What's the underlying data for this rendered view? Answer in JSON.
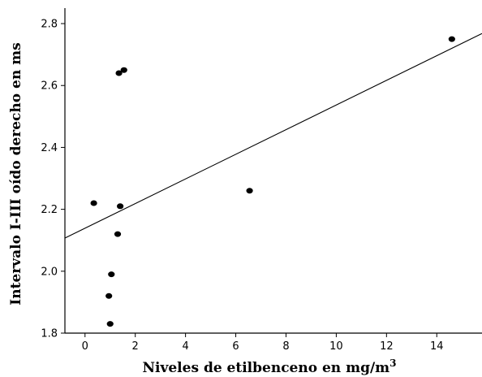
{
  "chart_data": {
    "type": "scatter",
    "title": "",
    "xlabel": "Niveles de etilbenceno en mg/m",
    "xlabel_superscript": "3",
    "ylabel": "Intervalo I-III oído derecho en ms",
    "xlim": [
      -0.8,
      15.8
    ],
    "ylim": [
      1.8,
      2.85
    ],
    "xticks": [
      0,
      2,
      4,
      6,
      8,
      10,
      12,
      14
    ],
    "yticks": [
      1.8,
      2.0,
      2.2,
      2.4,
      2.6,
      2.8
    ],
    "ytick_labels": [
      "1.8",
      "2.0",
      "2.2",
      "2.4",
      "2.6",
      "2.8"
    ],
    "grid": false,
    "points": [
      {
        "x": 0.35,
        "y": 2.22
      },
      {
        "x": 0.95,
        "y": 1.92
      },
      {
        "x": 1.0,
        "y": 1.83
      },
      {
        "x": 1.05,
        "y": 1.99
      },
      {
        "x": 1.3,
        "y": 2.12
      },
      {
        "x": 1.35,
        "y": 2.64
      },
      {
        "x": 1.4,
        "y": 2.21
      },
      {
        "x": 1.55,
        "y": 2.65
      },
      {
        "x": 6.55,
        "y": 2.26
      },
      {
        "x": 14.6,
        "y": 2.75
      }
    ],
    "fit_line": {
      "x": [
        -0.8,
        15.8
      ],
      "y": [
        2.107,
        2.768
      ]
    }
  }
}
